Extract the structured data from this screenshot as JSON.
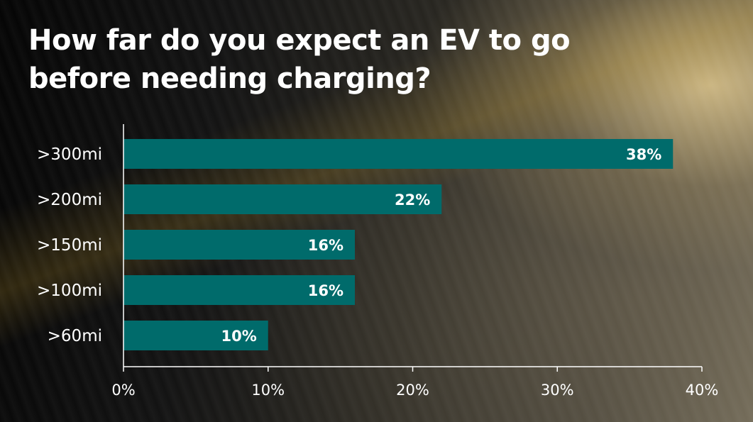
{
  "colors": {
    "bar": "#006b6b",
    "text": "#ffffff",
    "axis": "#ffffff"
  },
  "chart_data": {
    "type": "bar",
    "orientation": "horizontal",
    "title": "How far do you expect an EV to go before needing charging?",
    "categories": [
      ">300mi",
      ">200mi",
      ">150mi",
      ">100mi",
      ">60mi"
    ],
    "values": [
      38,
      22,
      16,
      16,
      10
    ],
    "data_labels": [
      "38%",
      "22%",
      "16%",
      "16%",
      "10%"
    ],
    "xlim": [
      0,
      40
    ],
    "xticks": [
      0,
      10,
      20,
      30,
      40
    ],
    "xtick_labels": [
      "0%",
      "10%",
      "20%",
      "30%",
      "40%"
    ],
    "xlabel": "",
    "ylabel": "",
    "grid": false,
    "legend": "none"
  }
}
